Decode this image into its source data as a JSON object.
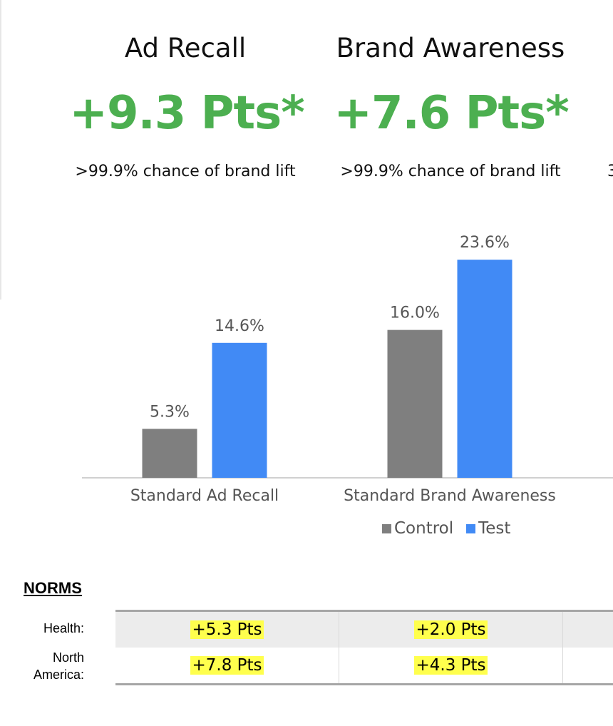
{
  "metrics": [
    {
      "title": "Ad Recall",
      "lift": "+9.3 Pts*",
      "chance": ">99.9% chance of brand lift"
    },
    {
      "title": "Brand Awareness",
      "lift": "+7.6 Pts*",
      "chance": ">99.9% chance of brand lift"
    }
  ],
  "truncated_third_chance_fragment": "3",
  "colors": {
    "control": "#7f7f7f",
    "test": "#418af5",
    "lift_green": "#4caf50",
    "highlight": "#ffff4d"
  },
  "chart_data": {
    "type": "bar",
    "categories": [
      "Standard Ad Recall",
      "Standard Brand Awareness"
    ],
    "series": [
      {
        "name": "Control",
        "values": [
          5.3,
          16.0
        ],
        "labels": [
          "5.3%",
          "16.0%"
        ]
      },
      {
        "name": "Test",
        "values": [
          14.6,
          23.6
        ],
        "labels": [
          "14.6%",
          "23.6%"
        ]
      }
    ],
    "unit": "%",
    "ylim": [
      0,
      28
    ],
    "legend": "bottom",
    "grid": false
  },
  "norms": {
    "heading": "NORMS",
    "rows": [
      {
        "label": "Health:",
        "values": [
          "+5.3 Pts",
          "+2.0 Pts"
        ]
      },
      {
        "label": "North America:",
        "label_lines": [
          "North",
          "America:"
        ],
        "values": [
          "+7.8 Pts",
          "+4.3 Pts"
        ]
      }
    ]
  }
}
